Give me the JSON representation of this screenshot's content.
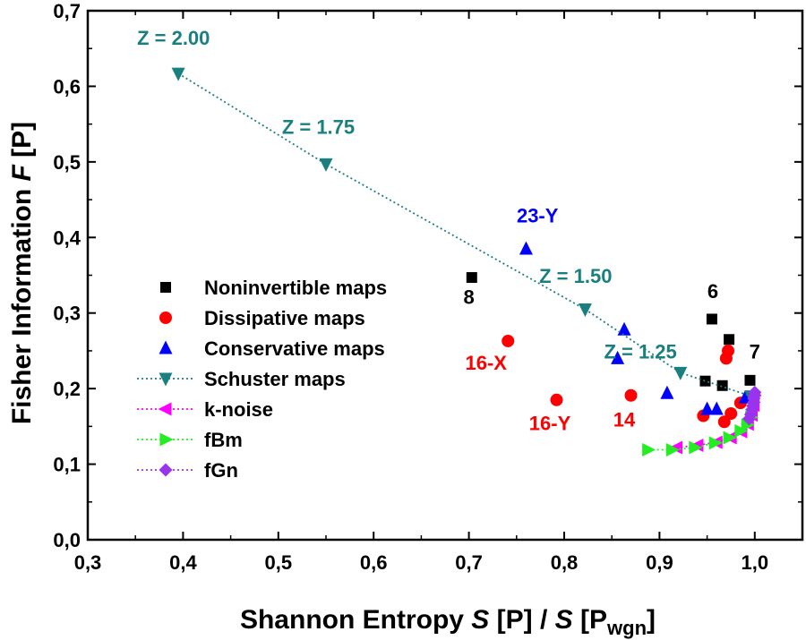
{
  "chart_data": {
    "type": "scatter",
    "xlabel": {
      "part1": "Shannon  Entropy  ",
      "s1": "S",
      "mid": " [P] / ",
      "s2": "S",
      "end": " [P",
      "sub": "wgn",
      "close": "]"
    },
    "ylabel": {
      "part1": "Fisher  Information  ",
      "f": "F",
      "end": " [P]"
    },
    "xlim": [
      0.3,
      1.05
    ],
    "ylim": [
      0.0,
      0.7
    ],
    "xticks": [
      "0,3",
      "0,4",
      "0,5",
      "0,6",
      "0,7",
      "0,8",
      "0,9",
      "1,0"
    ],
    "yticks": [
      "0,0",
      "0,1",
      "0,2",
      "0,3",
      "0,4",
      "0,5",
      "0,6",
      "0,7"
    ],
    "legend_position": "center-left",
    "series": [
      {
        "name": "Noninvertible maps",
        "marker": "square",
        "color": "#000000",
        "line": false,
        "x": [
          0.703,
          0.955,
          0.973,
          0.966,
          0.948,
          0.995
        ],
        "y": [
          0.347,
          0.292,
          0.265,
          0.204,
          0.21,
          0.211
        ]
      },
      {
        "name": "Dissipative maps",
        "marker": "circle",
        "color": "#ff0000",
        "line": false,
        "x": [
          0.741,
          0.792,
          0.87,
          0.972,
          0.97,
          0.946,
          0.975,
          0.968,
          0.985
        ],
        "y": [
          0.263,
          0.185,
          0.191,
          0.25,
          0.24,
          0.164,
          0.167,
          0.156,
          0.181
        ]
      },
      {
        "name": "Conservative maps",
        "marker": "triangle-up",
        "color": "#0000ff",
        "line": false,
        "x": [
          0.76,
          0.863,
          0.856,
          0.908,
          0.95,
          0.96,
          0.99
        ],
        "y": [
          0.385,
          0.278,
          0.24,
          0.194,
          0.173,
          0.173,
          0.188
        ]
      },
      {
        "name": "Schuster maps",
        "marker": "triangle-down",
        "color": "#1a7f7f",
        "line": true,
        "x": [
          0.395,
          0.55,
          0.822,
          0.922,
          0.996
        ],
        "y": [
          0.617,
          0.497,
          0.305,
          0.221,
          0.19
        ]
      },
      {
        "name": "k-noise",
        "marker": "triangle-left",
        "color": "#ff00ff",
        "line": true,
        "x": [
          0.918,
          0.94,
          0.96,
          0.975,
          0.986,
          0.993,
          0.997,
          0.999
        ],
        "y": [
          0.122,
          0.125,
          0.129,
          0.135,
          0.143,
          0.153,
          0.165,
          0.178
        ]
      },
      {
        "name": "fBm",
        "marker": "triangle-right",
        "color": "#22ee22",
        "line": true,
        "x": [
          0.888,
          0.913,
          0.937,
          0.958,
          0.973,
          0.985,
          0.992,
          0.996
        ],
        "y": [
          0.119,
          0.119,
          0.122,
          0.128,
          0.135,
          0.144,
          0.152,
          0.162
        ]
      },
      {
        "name": "fGn",
        "marker": "diamond",
        "color": "#9933ee",
        "line": true,
        "x": [
          0.994,
          0.996,
          0.997,
          0.998,
          0.999,
          0.999,
          1.0,
          1.0
        ],
        "y": [
          0.16,
          0.166,
          0.172,
          0.177,
          0.182,
          0.187,
          0.191,
          0.195
        ]
      }
    ],
    "annotations": [
      {
        "text": "Z = 2.00",
        "x": 0.39,
        "y": 0.655,
        "color": "#1a7f7f"
      },
      {
        "text": "Z = 1.75",
        "x": 0.542,
        "y": 0.537,
        "color": "#1a7f7f"
      },
      {
        "text": "Z = 1.50",
        "x": 0.812,
        "y": 0.34,
        "color": "#1a7f7f"
      },
      {
        "text": "Z = 1.25",
        "x": 0.88,
        "y": 0.24,
        "color": "#1a7f7f"
      },
      {
        "text": "23-Y",
        "x": 0.772,
        "y": 0.42,
        "color": "#0000ff"
      },
      {
        "text": "8",
        "x": 0.7,
        "y": 0.312,
        "color": "#000000"
      },
      {
        "text": "6",
        "x": 0.956,
        "y": 0.32,
        "color": "#000000"
      },
      {
        "text": "7",
        "x": 1.0,
        "y": 0.24,
        "color": "#000000"
      },
      {
        "text": "16-X",
        "x": 0.718,
        "y": 0.225,
        "color": "#ff0000"
      },
      {
        "text": "16-Y",
        "x": 0.785,
        "y": 0.145,
        "color": "#ff0000"
      },
      {
        "text": "14",
        "x": 0.863,
        "y": 0.15,
        "color": "#ff0000"
      }
    ]
  }
}
